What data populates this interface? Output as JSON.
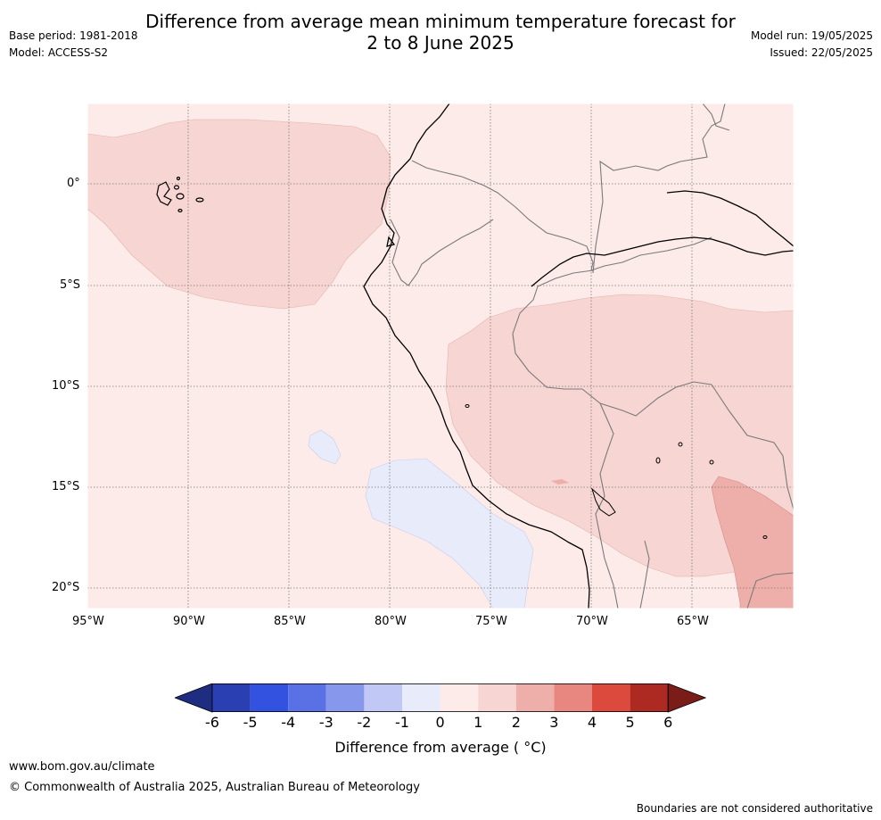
{
  "header": {
    "title_line1": "Difference from average mean minimum temperature forecast for",
    "title_line2": "2 to 8 June 2025",
    "base_period": "Base period: 1981-2018",
    "model": "Model: ACCESS-S2",
    "model_run": "Model run: 19/05/2025",
    "issued": "Issued: 22/05/2025"
  },
  "map": {
    "lat_labels": [
      "0°",
      "5°S",
      "10°S",
      "15°S",
      "20°S"
    ],
    "lon_labels": [
      "95°W",
      "90°W",
      "85°W",
      "80°W",
      "75°W",
      "70°W",
      "65°W"
    ],
    "colors": {
      "pos_0_1": "#fcebe8",
      "pos_1_2": "#f6d5d2",
      "pos_2_3": "#eeaea9",
      "neg_0_1": "#e8ebfa",
      "coast": "#000000",
      "border": "#7a7a7a",
      "grid": "#7a7a7a"
    }
  },
  "colorbar": {
    "ticks": [
      "-6",
      "-5",
      "-4",
      "-3",
      "-2",
      "-1",
      "0",
      "1",
      "2",
      "3",
      "4",
      "5",
      "6"
    ],
    "label": "Difference from average ( °C)",
    "colors": [
      "#1f2d80",
      "#2a40b2",
      "#3352e0",
      "#5a71e6",
      "#8797ec",
      "#c1c8f5",
      "#e8ebfa",
      "#fcebe8",
      "#f6d5d2",
      "#eeaea9",
      "#e8877f",
      "#dc4a3e",
      "#ac2a22",
      "#7a1c18"
    ]
  },
  "footer": {
    "website": "www.bom.gov.au/climate",
    "copyright": "© Commonwealth of Australia 2025, Australian Bureau of Meteorology",
    "disclaimer": "Boundaries are not considered authoritative"
  }
}
